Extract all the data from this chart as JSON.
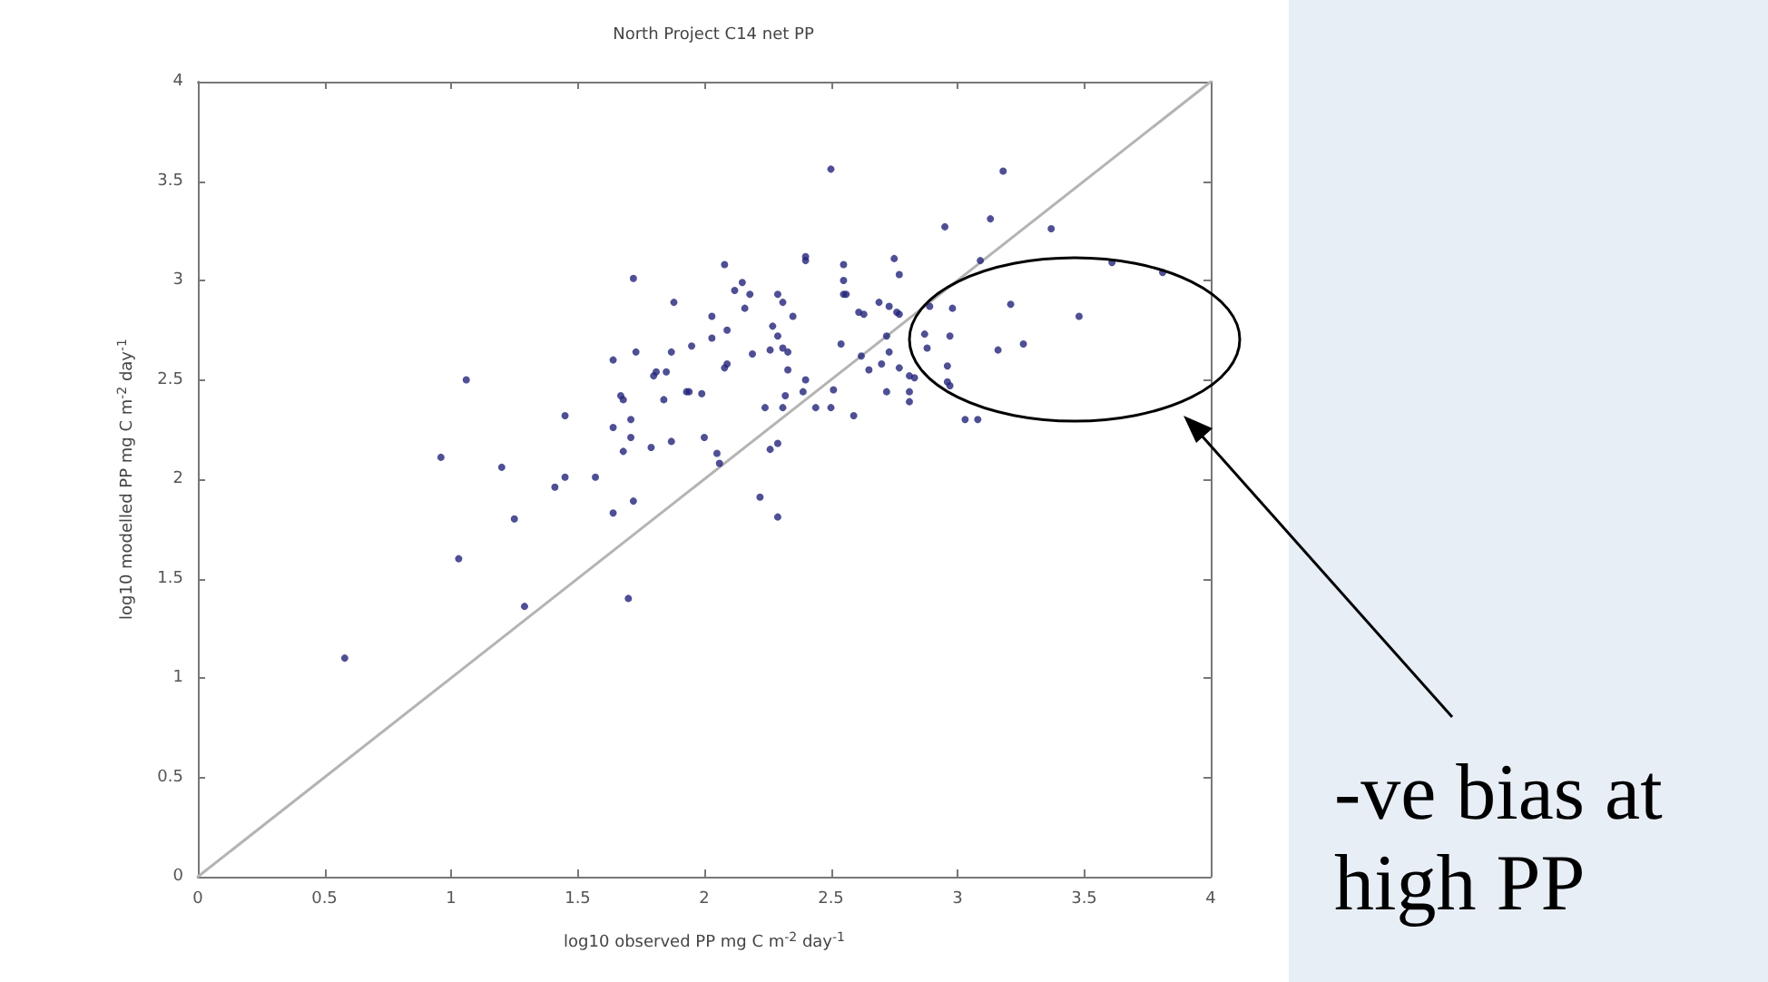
{
  "chart_data": {
    "type": "scatter",
    "title": "North Project C14 net PP",
    "xlabel": "log10 observed PP mg C m$^{-2}$ day$^{-1}$",
    "ylabel": "log10 modelled PP mg C m$^{-2}$ day$^{-1}$",
    "annotations": [
      "-ve bias at high PP"
    ],
    "xlim": [
      0,
      4
    ],
    "ylim": [
      0,
      4
    ],
    "xticks": [
      0,
      0.5,
      1,
      1.5,
      2,
      2.5,
      3,
      3.5,
      4
    ],
    "yticks": [
      0,
      0.5,
      1,
      1.5,
      2,
      2.5,
      3,
      3.5,
      4
    ],
    "grid": false,
    "marker": "circle",
    "series": [
      {
        "color": "#23237a",
        "x": [
          0.58,
          1.03,
          1.25,
          1.29,
          1.41,
          1.45,
          1.57,
          1.64,
          1.72,
          1.7,
          2.22,
          2.29,
          1.72,
          1.88,
          1.06,
          0.96,
          1.2,
          1.45,
          1.64,
          1.73,
          1.87,
          1.81,
          1.85,
          1.67,
          1.68,
          1.84,
          1.93,
          1.71,
          1.64,
          1.71,
          1.68,
          1.79,
          1.87,
          2.5,
          3.18,
          2.95,
          3.13,
          3.37,
          3.09,
          3.61,
          3.81,
          2.4,
          2.4,
          2.08,
          2.55,
          2.75,
          2.77,
          2.55,
          2.55,
          2.56,
          2.15,
          2.12,
          2.18,
          2.16,
          2.29,
          2.31,
          2.35,
          2.03,
          2.61,
          2.63,
          2.69,
          2.73,
          2.76,
          2.77,
          2.89,
          2.98,
          3.21,
          3.48,
          2.09,
          2.03,
          2.27,
          2.29,
          1.95,
          2.31,
          2.26,
          2.19,
          2.09,
          2.08,
          2.54,
          2.72,
          2.73,
          2.62,
          2.7,
          2.65,
          2.77,
          2.81,
          2.83,
          2.87,
          2.88,
          2.97,
          2.96,
          3.16,
          3.26,
          2.96,
          2.97,
          3.03,
          3.08,
          2.72,
          2.81,
          2.81,
          2.4,
          2.32,
          2.31,
          2.39,
          2.44,
          2.5,
          2.51,
          2.24,
          2.59,
          1.94,
          1.99,
          2.0,
          2.05,
          2.06,
          2.26,
          2.29,
          2.33,
          2.33,
          1.8
        ],
        "values": [
          1.1,
          1.6,
          1.8,
          1.36,
          1.96,
          2.01,
          2.01,
          1.83,
          1.89,
          1.4,
          1.91,
          1.81,
          3.01,
          2.89,
          2.5,
          2.11,
          2.06,
          2.32,
          2.6,
          2.64,
          2.64,
          2.54,
          2.54,
          2.42,
          2.4,
          2.4,
          2.44,
          2.3,
          2.26,
          2.21,
          2.14,
          2.16,
          2.19,
          3.56,
          3.55,
          3.27,
          3.31,
          3.26,
          3.1,
          3.09,
          3.04,
          3.12,
          3.1,
          3.08,
          3.08,
          3.11,
          3.03,
          3.0,
          2.93,
          2.93,
          2.99,
          2.95,
          2.93,
          2.86,
          2.93,
          2.89,
          2.82,
          2.82,
          2.84,
          2.83,
          2.89,
          2.87,
          2.84,
          2.83,
          2.87,
          2.86,
          2.88,
          2.82,
          2.75,
          2.71,
          2.77,
          2.72,
          2.67,
          2.66,
          2.65,
          2.63,
          2.58,
          2.56,
          2.68,
          2.72,
          2.64,
          2.62,
          2.58,
          2.55,
          2.56,
          2.52,
          2.51,
          2.73,
          2.66,
          2.72,
          2.57,
          2.65,
          2.68,
          2.49,
          2.47,
          2.3,
          2.3,
          2.44,
          2.44,
          2.39,
          2.5,
          2.42,
          2.36,
          2.44,
          2.36,
          2.36,
          2.45,
          2.36,
          2.32,
          2.44,
          2.43,
          2.21,
          2.13,
          2.08,
          2.15,
          2.18,
          2.64,
          2.55,
          2.52
        ]
      },
      {
        "type": "line",
        "color": "#b4b4b4",
        "x": [
          0,
          4
        ],
        "values": [
          0,
          4
        ],
        "line_style": "solid",
        "marker": "none"
      }
    ]
  }
}
